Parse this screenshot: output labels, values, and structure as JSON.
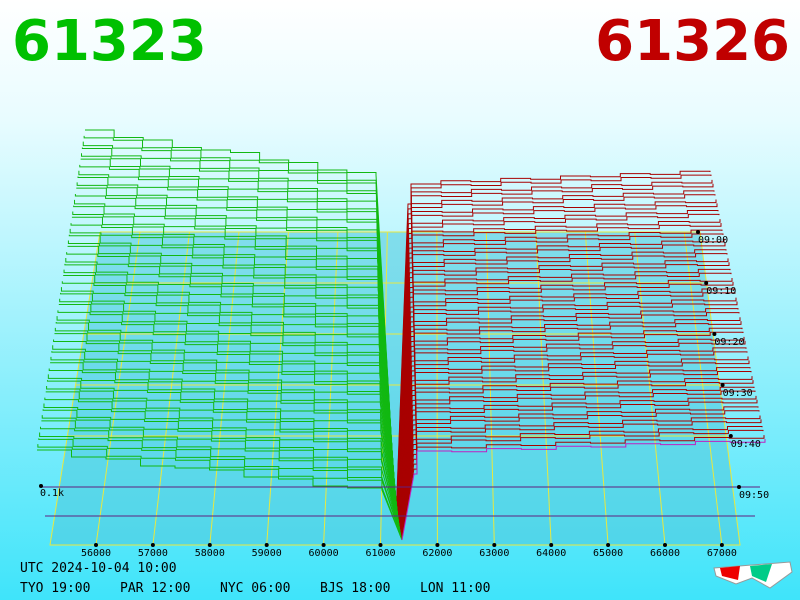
{
  "header": {
    "bid": "61323",
    "ask": "61326"
  },
  "price_axis": {
    "labels": [
      "56000",
      "57000",
      "58000",
      "59000",
      "60000",
      "61000",
      "62000",
      "63000",
      "64000",
      "65000",
      "66000",
      "67000"
    ]
  },
  "time_axis": {
    "labels": [
      "09:00",
      "09:10",
      "09:20",
      "09:30",
      "09:40",
      "09:50"
    ]
  },
  "depth_label": "0.1k",
  "footer": {
    "utc": "UTC 2024-10-04 10:00",
    "cities": [
      "TYO 19:00",
      "PAR 12:00",
      "NYC 06:00",
      "BJS 18:00",
      "LON 11:00"
    ]
  }
}
